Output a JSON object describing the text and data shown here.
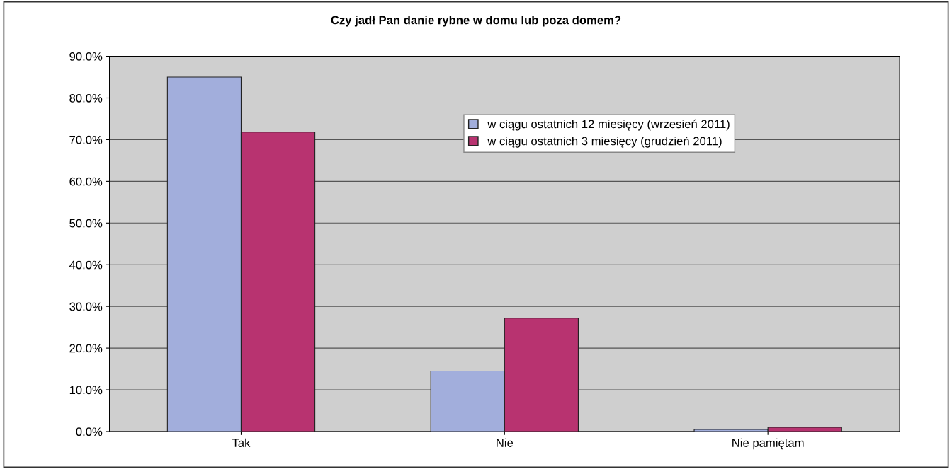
{
  "chart_data": {
    "type": "bar",
    "title": "Czy jadł Pan danie rybne w domu lub poza domem?",
    "categories": [
      "Tak",
      "Nie",
      "Nie pamiętam"
    ],
    "series": [
      {
        "name": "w ciągu ostatnich 12 miesięcy (wrzesień 2011)",
        "color": "#a2aedc",
        "values": [
          85.0,
          14.5,
          0.5
        ]
      },
      {
        "name": "w ciągu ostatnich 3 miesięcy (grudzień 2011)",
        "color": "#b83370",
        "values": [
          71.8,
          27.2,
          1.0
        ]
      }
    ],
    "ylim": [
      0,
      90
    ],
    "yticks": [
      {
        "value": 0,
        "label": "0.0%"
      },
      {
        "value": 10,
        "label": "10.0%"
      },
      {
        "value": 20,
        "label": "20.0%"
      },
      {
        "value": 30,
        "label": "30.0%"
      },
      {
        "value": 40,
        "label": "40.0%"
      },
      {
        "value": 50,
        "label": "50.0%"
      },
      {
        "value": 60,
        "label": "60.0%"
      },
      {
        "value": 70,
        "label": "70.0%"
      },
      {
        "value": 80,
        "label": "80.0%"
      },
      {
        "value": 90,
        "label": "90.0%"
      }
    ],
    "grid": "y",
    "legend": "top"
  }
}
